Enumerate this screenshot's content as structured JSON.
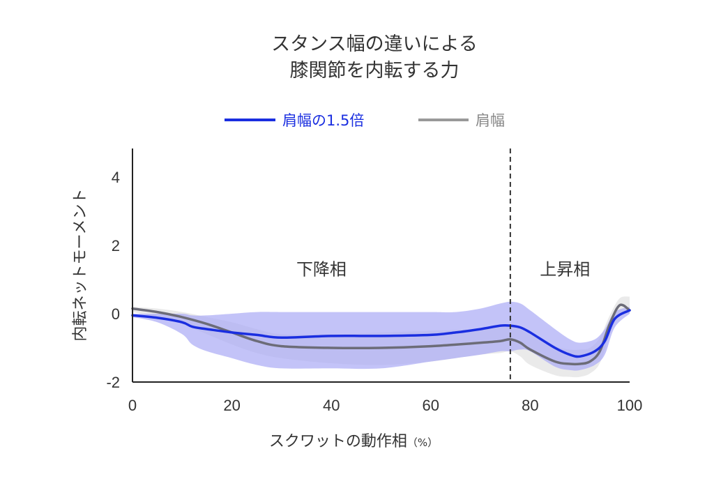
{
  "chart_data": {
    "type": "line",
    "title_lines": [
      "スタンス幅の違いによる",
      "膝関節を内転する力"
    ],
    "xlabel": "スクワットの動作相",
    "xlabel_unit": "（%）",
    "ylabel": "内転ネットモーメント",
    "xlim": [
      0,
      100
    ],
    "ylim": [
      -2,
      4.8
    ],
    "xticks": [
      "0",
      "20",
      "40",
      "60",
      "80",
      "100"
    ],
    "yticks": [
      "-2",
      "0",
      "2",
      "4"
    ],
    "grid": false,
    "legend_position": "top-center",
    "divider": {
      "x": 76,
      "style": "dashed"
    },
    "phase_labels": [
      {
        "text": "下降相",
        "x": 38,
        "y": 1.3
      },
      {
        "text": "上昇相",
        "x": 87,
        "y": 1.3
      }
    ],
    "series": [
      {
        "name": "肩幅の1.5倍",
        "color": "#1a2ee0",
        "band_color": "#aaaaf5",
        "x": [
          0,
          5,
          10,
          12,
          15,
          20,
          25,
          30,
          40,
          50,
          60,
          65,
          70,
          74,
          76,
          78,
          80,
          85,
          88,
          90,
          93,
          95,
          97,
          100
        ],
        "mean": [
          -0.05,
          -0.12,
          -0.25,
          -0.38,
          -0.45,
          -0.55,
          -0.62,
          -0.7,
          -0.65,
          -0.65,
          -0.62,
          -0.55,
          -0.45,
          -0.35,
          -0.35,
          -0.4,
          -0.55,
          -1.0,
          -1.2,
          -1.25,
          -1.1,
          -0.8,
          -0.15,
          0.1
        ],
        "lower": [
          -0.1,
          -0.25,
          -0.6,
          -0.9,
          -1.1,
          -1.3,
          -1.5,
          -1.6,
          -1.6,
          -1.6,
          -1.4,
          -1.3,
          -1.2,
          -1.1,
          -1.1,
          -1.05,
          -1.1,
          -1.55,
          -1.65,
          -1.65,
          -1.5,
          -1.2,
          -0.4,
          0.0
        ],
        "upper": [
          0.0,
          0.0,
          0.0,
          -0.05,
          -0.05,
          0.0,
          0.05,
          0.05,
          0.05,
          0.05,
          0.05,
          0.05,
          0.15,
          0.3,
          0.35,
          0.3,
          0.1,
          -0.45,
          -0.75,
          -0.85,
          -0.75,
          -0.45,
          0.05,
          0.2
        ]
      },
      {
        "name": "肩幅",
        "color": "#6c6c78",
        "band_color": "#d0d0d0",
        "x": [
          0,
          5,
          10,
          15,
          20,
          25,
          30,
          40,
          50,
          60,
          70,
          74,
          76,
          78,
          80,
          85,
          88,
          90,
          92,
          94,
          96,
          98,
          100
        ],
        "mean": [
          0.15,
          0.05,
          -0.1,
          -0.3,
          -0.55,
          -0.8,
          -0.95,
          -1.0,
          -1.0,
          -0.95,
          -0.85,
          -0.8,
          -0.75,
          -0.85,
          -1.05,
          -1.4,
          -1.47,
          -1.47,
          -1.4,
          -1.1,
          -0.3,
          0.25,
          0.1
        ],
        "lower": [
          0.05,
          -0.1,
          -0.3,
          -0.6,
          -0.9,
          -1.15,
          -1.3,
          -1.45,
          -1.5,
          -1.4,
          -1.2,
          -1.15,
          -1.1,
          -1.25,
          -1.5,
          -1.8,
          -1.85,
          -1.85,
          -1.75,
          -1.45,
          -0.6,
          0.0,
          0.0
        ],
        "upper": [
          0.2,
          0.15,
          0.05,
          -0.1,
          -0.25,
          -0.45,
          -0.6,
          -0.6,
          -0.55,
          -0.5,
          -0.45,
          -0.4,
          -0.35,
          -0.45,
          -0.6,
          -0.95,
          -1.05,
          -1.05,
          -1.0,
          -0.7,
          -0.05,
          0.45,
          0.5
        ]
      }
    ]
  }
}
